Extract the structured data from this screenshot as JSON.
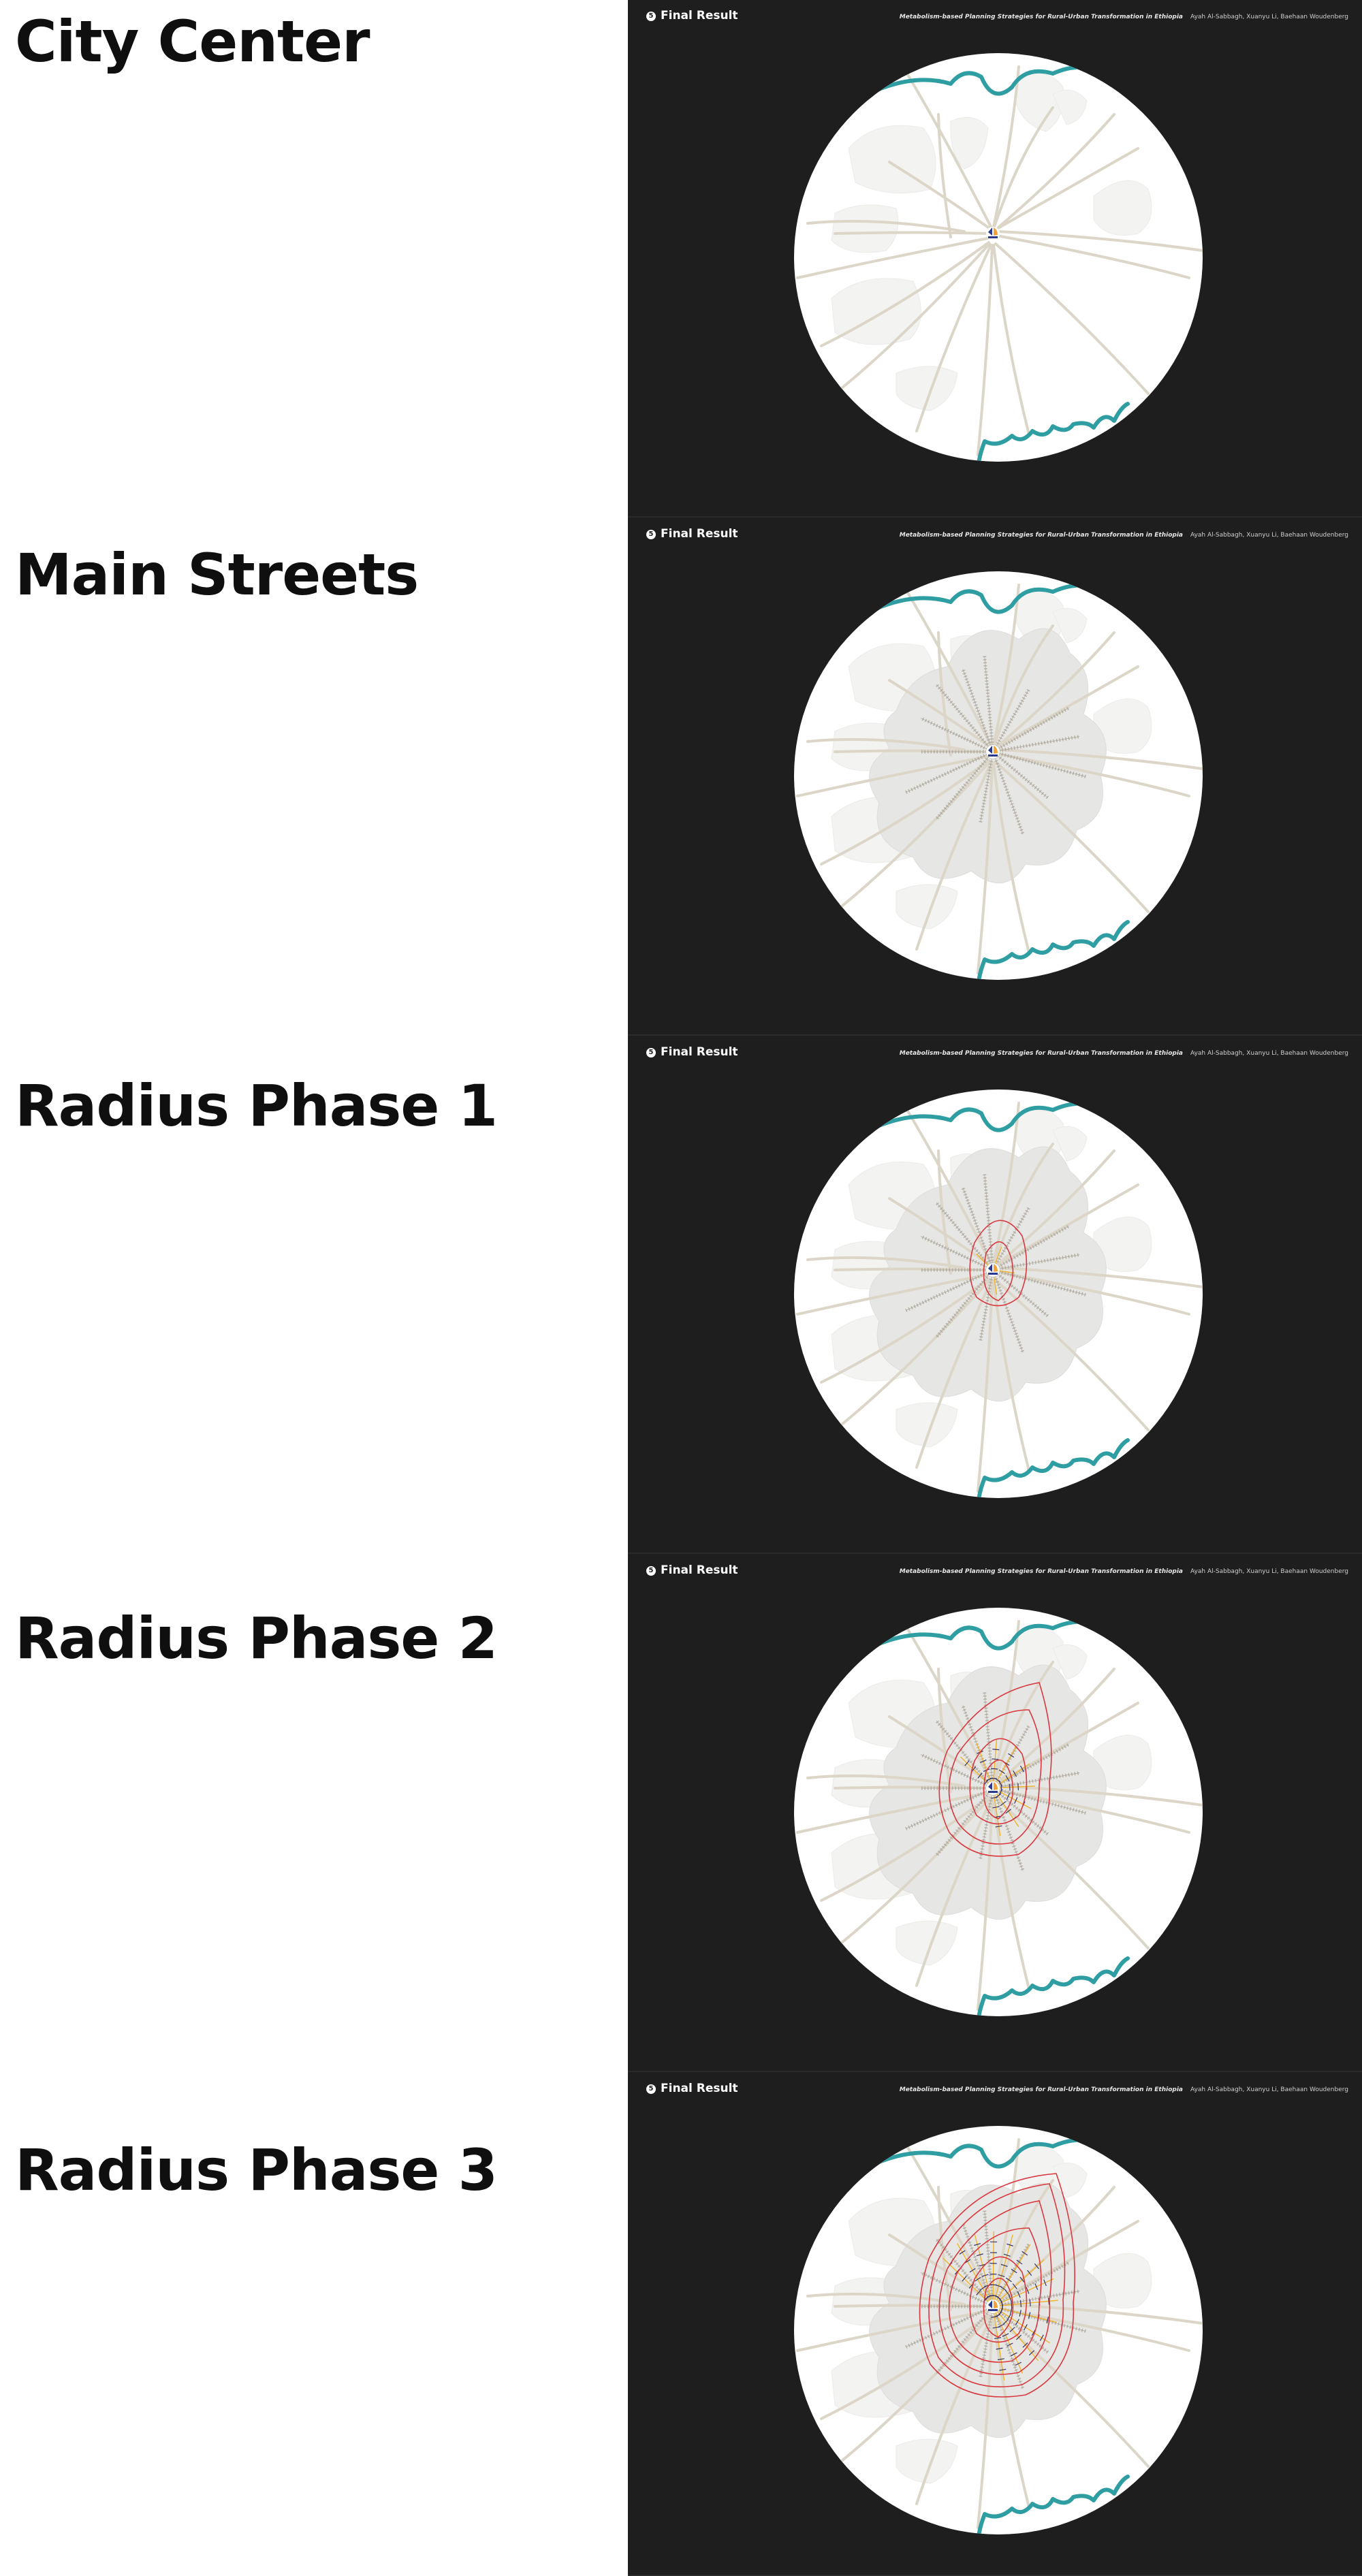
{
  "sections": [
    {
      "title": "City Center",
      "phase": 0
    },
    {
      "title": "Main Streets",
      "phase": 1
    },
    {
      "title": "Radius Phase 1",
      "phase": 2
    },
    {
      "title": "Radius Phase 2",
      "phase": 3
    },
    {
      "title": "Radius Phase 3",
      "phase": 4
    }
  ],
  "slide": {
    "step_number": "5",
    "label": "Final Result",
    "project_title": "Metabolism-based Planning Strategies for Rural-Urban Transformation in Ethiopia",
    "authors": "Ayah Al-Sabbagh, Xuanyu Li, Baehaan Woudenberg"
  },
  "colors": {
    "background": "#1e1e1e",
    "map_fill": "#ffffff",
    "river": "#2f9ea3",
    "roads": "#dcd6c8",
    "blocks": "#f3f3f1",
    "developed_area": "#e6e6e4",
    "street_hatch": "#b8b2a6",
    "radius_contour": "#d9383f",
    "radius_infill": "#f0b429",
    "center_marker_blue": "#2b3a8c",
    "center_marker_orange": "#f2a23a"
  },
  "icons": {
    "step_badge": "number-circle-icon",
    "center_marker": "city-center-marker-icon"
  }
}
